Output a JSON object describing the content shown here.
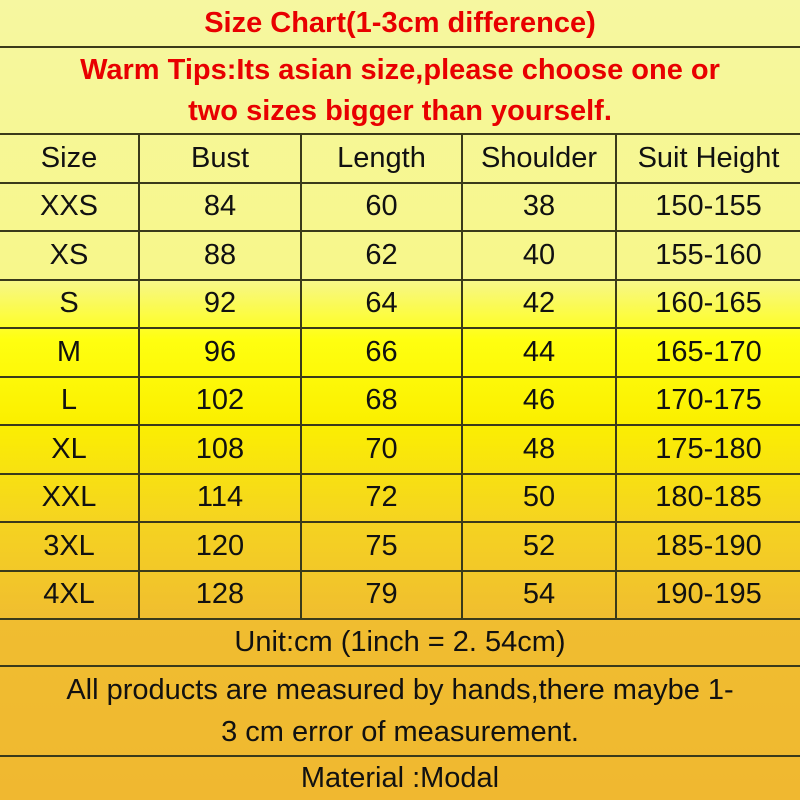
{
  "title": "Size Chart(1-3cm difference)",
  "tips": [
    "Warm Tips:Its asian size,please choose one or",
    "two sizes bigger than yourself."
  ],
  "table": {
    "headers": [
      "Size",
      "Bust",
      "Length",
      "Shoulder",
      "Suit Height"
    ],
    "rows": [
      [
        "XXS",
        "84",
        "60",
        "38",
        "150-155"
      ],
      [
        "XS",
        "88",
        "62",
        "40",
        "155-160"
      ],
      [
        "S",
        "92",
        "64",
        "42",
        "160-165"
      ],
      [
        "M",
        "96",
        "66",
        "44",
        "165-170"
      ],
      [
        "L",
        "102",
        "68",
        "46",
        "170-175"
      ],
      [
        "XL",
        "108",
        "70",
        "48",
        "175-180"
      ],
      [
        "XXL",
        "114",
        "72",
        "50",
        "180-185"
      ],
      [
        "3XL",
        "120",
        "75",
        "52",
        "185-190"
      ],
      [
        "4XL",
        "128",
        "79",
        "54",
        "190-195"
      ]
    ]
  },
  "unit": "Unit:cm (1inch = 2. 54cm)",
  "note": [
    "All products are measured by hands,there maybe 1-",
    "3 cm error of measurement."
  ],
  "material": "Material :Modal",
  "colors": {
    "title_text": "#e80000",
    "top_bg": "#f6f7a0",
    "mid_bg": "#ffff10",
    "bottom_bg": "#f0b830"
  }
}
